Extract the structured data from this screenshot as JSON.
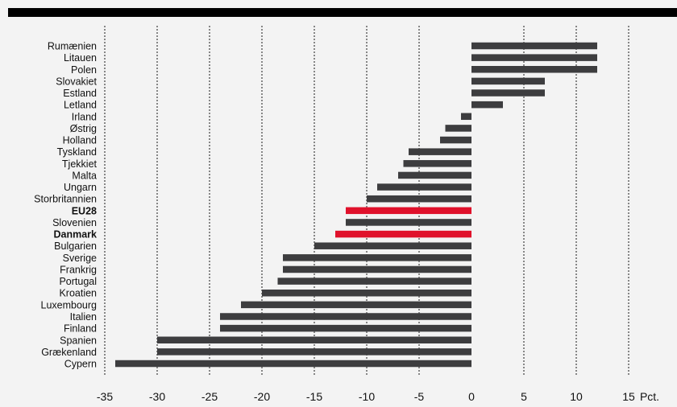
{
  "chart_data": {
    "type": "bar",
    "orientation": "horizontal",
    "categories": [
      "Rumænien",
      "Litauen",
      "Polen",
      "Slovakiet",
      "Estland",
      "Letland",
      "Irland",
      "Østrig",
      "Holland",
      "Tyskland",
      "Tjekkiet",
      "Malta",
      "Ungarn",
      "Storbritannien",
      "EU28",
      "Slovenien",
      "Danmark",
      "Bulgarien",
      "Sverige",
      "Frankrig",
      "Portugal",
      "Kroatien",
      "Luxembourg",
      "Italien",
      "Finland",
      "Spanien",
      "Grækenland",
      "Cypern"
    ],
    "values": [
      12,
      12,
      12,
      7,
      7,
      3,
      -1,
      -2.5,
      -3,
      -6,
      -6.5,
      -7,
      -9,
      -10,
      -12,
      -12,
      -13,
      -15,
      -18,
      -18,
      -18.5,
      -20,
      -22,
      -24,
      -24,
      -30,
      -30,
      -34
    ],
    "highlighted": [
      "EU28",
      "Danmark"
    ],
    "bold_categories": [
      "EU28",
      "Danmark"
    ],
    "x_ticks": [
      -35,
      -30,
      -25,
      -20,
      -15,
      -10,
      -5,
      0,
      5,
      10,
      15
    ],
    "xlim": [
      -35,
      15
    ],
    "x_unit": "Pct.",
    "grid": "vertical-dotted",
    "colors": {
      "bar": "#3d3d3f",
      "highlight": "#e0112b",
      "background": "#f3f3f3",
      "top_bar": "#000000"
    }
  }
}
